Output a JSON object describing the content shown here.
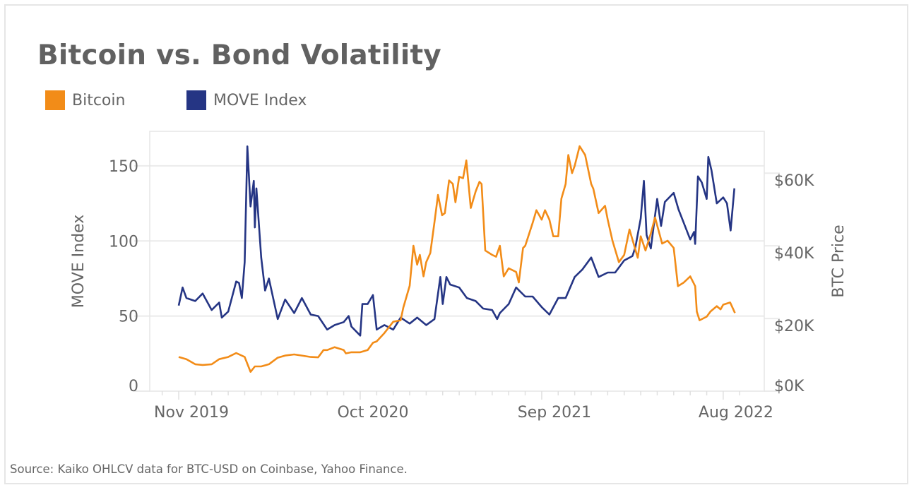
{
  "chart_data": {
    "type": "line",
    "title": "Bitcoin vs. Bond Volatility",
    "source": "Source: Kaiko OHLCV data for BTC-USD on Coinbase, Yahoo Finance.",
    "legend": {
      "placement": "top-left",
      "entries": [
        "Bitcoin",
        "MOVE Index"
      ]
    },
    "grid": true,
    "x_axis": {
      "type": "date",
      "ticks": [
        "Nov 2019",
        "Oct 2020",
        "Sep 2021",
        "Aug 2022"
      ],
      "minor_ticks": "monthly"
    },
    "y_left": {
      "label": "MOVE Index",
      "ticks": [
        "0",
        "50",
        "100",
        "150"
      ],
      "tick_values": [
        0,
        50,
        100,
        150
      ],
      "range": [
        0,
        173
      ]
    },
    "y_right": {
      "label": "BTC Price",
      "ticks": [
        "$0K",
        "$20K",
        "$40K",
        "$60K"
      ],
      "tick_values": [
        0,
        20000,
        40000,
        60000
      ],
      "range": [
        0,
        71500
      ]
    },
    "series": [
      {
        "name": "Bitcoin",
        "axis": "right",
        "color": "#f28c18",
        "x": [
          "2019-11-01",
          "2019-11-15",
          "2019-12-01",
          "2019-12-15",
          "2020-01-01",
          "2020-01-15",
          "2020-02-01",
          "2020-02-15",
          "2020-03-01",
          "2020-03-12",
          "2020-03-20",
          "2020-04-01",
          "2020-04-15",
          "2020-05-01",
          "2020-05-15",
          "2020-06-01",
          "2020-06-15",
          "2020-07-01",
          "2020-07-15",
          "2020-07-25",
          "2020-08-01",
          "2020-08-15",
          "2020-09-01",
          "2020-09-05",
          "2020-09-15",
          "2020-10-01",
          "2020-10-15",
          "2020-10-25",
          "2020-11-01",
          "2020-11-15",
          "2020-12-01",
          "2020-12-15",
          "2020-12-20",
          "2021-01-01",
          "2021-01-08",
          "2021-01-15",
          "2021-01-20",
          "2021-01-27",
          "2021-02-01",
          "2021-02-08",
          "2021-02-15",
          "2021-02-21",
          "2021-02-28",
          "2021-03-05",
          "2021-03-13",
          "2021-03-20",
          "2021-03-25",
          "2021-04-01",
          "2021-04-08",
          "2021-04-14",
          "2021-04-22",
          "2021-05-01",
          "2021-05-08",
          "2021-05-12",
          "2021-05-19",
          "2021-06-01",
          "2021-06-08",
          "2021-06-15",
          "2021-06-22",
          "2021-07-01",
          "2021-07-15",
          "2021-07-20",
          "2021-07-28",
          "2021-08-01",
          "2021-08-15",
          "2021-08-22",
          "2021-09-01",
          "2021-09-07",
          "2021-09-15",
          "2021-09-22",
          "2021-10-01",
          "2021-10-07",
          "2021-10-15",
          "2021-10-20",
          "2021-10-27",
          "2021-11-01",
          "2021-11-10",
          "2021-11-20",
          "2021-12-01",
          "2021-12-05",
          "2021-12-15",
          "2021-12-27",
          "2022-01-01",
          "2022-01-10",
          "2022-01-22",
          "2022-02-01",
          "2022-02-10",
          "2022-02-24",
          "2022-03-01",
          "2022-03-10",
          "2022-03-20",
          "2022-03-28",
          "2022-04-10",
          "2022-04-20",
          "2022-05-01",
          "2022-05-09",
          "2022-05-20",
          "2022-06-01",
          "2022-06-10",
          "2022-06-13",
          "2022-06-18",
          "2022-07-01",
          "2022-07-08",
          "2022-07-20",
          "2022-07-27",
          "2022-08-01",
          "2022-08-14",
          "2022-08-20",
          "2022-08-23"
        ],
        "values": [
          9400,
          8800,
          7400,
          7200,
          7400,
          8800,
          9400,
          10500,
          9400,
          5300,
          6800,
          6800,
          7400,
          9200,
          9800,
          10100,
          9800,
          9400,
          9300,
          11300,
          11300,
          12100,
          11300,
          10400,
          10700,
          10700,
          11300,
          13300,
          13700,
          16000,
          19100,
          19500,
          23000,
          29000,
          40000,
          34800,
          37500,
          31600,
          35500,
          38000,
          46500,
          54000,
          48400,
          49000,
          58000,
          57000,
          52000,
          59000,
          58600,
          63500,
          50400,
          55000,
          57600,
          57000,
          38700,
          37500,
          37000,
          40000,
          31600,
          33800,
          32800,
          29900,
          39400,
          40000,
          46300,
          49800,
          47200,
          49800,
          47200,
          42600,
          42600,
          53000,
          57000,
          65000,
          60000,
          62000,
          67400,
          65000,
          57000,
          55700,
          49000,
          51000,
          47200,
          41400,
          35500,
          37500,
          44500,
          36700,
          42600,
          38700,
          43400,
          47800,
          40600,
          41400,
          39400,
          28900,
          29900,
          31600,
          28900,
          21900,
          19500,
          20500,
          21900,
          23400,
          22500,
          23800,
          24400,
          22500,
          21500
        ]
      },
      {
        "name": "MOVE Index",
        "axis": "left",
        "color": "#253584",
        "x": [
          "2019-11-01",
          "2019-11-08",
          "2019-11-15",
          "2019-12-01",
          "2019-12-15",
          "2020-01-01",
          "2020-01-15",
          "2020-01-20",
          "2020-02-01",
          "2020-02-15",
          "2020-02-20",
          "2020-02-25",
          "2020-03-01",
          "2020-03-06",
          "2020-03-12",
          "2020-03-18",
          "2020-03-20",
          "2020-03-23",
          "2020-04-01",
          "2020-04-08",
          "2020-04-15",
          "2020-05-01",
          "2020-05-15",
          "2020-06-01",
          "2020-06-15",
          "2020-07-01",
          "2020-07-15",
          "2020-08-01",
          "2020-08-15",
          "2020-09-01",
          "2020-09-10",
          "2020-09-15",
          "2020-10-01",
          "2020-10-05",
          "2020-10-15",
          "2020-10-25",
          "2020-11-01",
          "2020-11-15",
          "2020-12-01",
          "2020-12-15",
          "2021-01-01",
          "2021-01-15",
          "2021-02-01",
          "2021-02-15",
          "2021-02-25",
          "2021-03-01",
          "2021-03-08",
          "2021-03-15",
          "2021-04-01",
          "2021-04-15",
          "2021-05-01",
          "2021-05-15",
          "2021-06-01",
          "2021-06-10",
          "2021-06-15",
          "2021-07-01",
          "2021-07-15",
          "2021-08-01",
          "2021-08-15",
          "2021-09-01",
          "2021-09-15",
          "2021-10-01",
          "2021-10-15",
          "2021-11-01",
          "2021-11-15",
          "2021-12-01",
          "2021-12-15",
          "2022-01-01",
          "2022-01-15",
          "2022-02-01",
          "2022-02-15",
          "2022-02-20",
          "2022-03-01",
          "2022-03-07",
          "2022-03-12",
          "2022-03-20",
          "2022-04-01",
          "2022-04-08",
          "2022-04-15",
          "2022-05-01",
          "2022-05-10",
          "2022-05-20",
          "2022-06-01",
          "2022-06-08",
          "2022-06-10",
          "2022-06-15",
          "2022-06-22",
          "2022-07-01",
          "2022-07-04",
          "2022-07-10",
          "2022-07-20",
          "2022-08-01",
          "2022-08-08",
          "2022-08-15",
          "2022-08-22"
        ],
        "values": [
          57,
          69,
          62,
          60,
          65,
          54,
          59,
          49,
          53,
          73,
          72,
          62,
          86,
          163,
          123,
          140,
          109,
          135,
          89,
          67,
          75,
          48,
          61,
          52,
          62,
          51,
          50,
          41,
          44,
          46,
          50,
          43,
          37,
          58,
          58,
          64,
          41,
          44,
          41,
          49,
          45,
          49,
          44,
          48,
          76,
          58,
          76,
          71,
          69,
          62,
          60,
          55,
          54,
          48,
          52,
          58,
          69,
          63,
          63,
          56,
          51,
          62,
          62,
          76,
          81,
          89,
          76,
          79,
          79,
          87,
          90,
          96,
          115,
          140,
          104,
          95,
          128,
          110,
          126,
          132,
          121,
          112,
          101,
          106,
          98,
          143,
          139,
          128,
          156,
          147,
          125,
          129,
          125,
          107,
          135
        ]
      }
    ]
  }
}
